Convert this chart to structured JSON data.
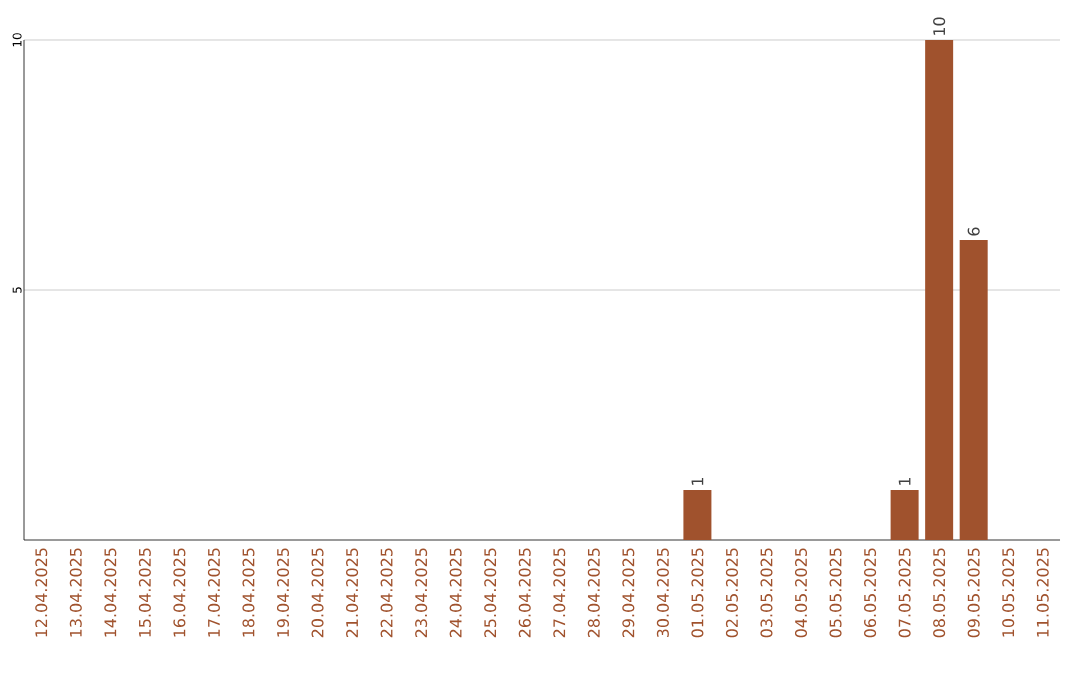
{
  "chart_data": {
    "type": "bar",
    "categories": [
      "12.04.2025",
      "13.04.2025",
      "14.04.2025",
      "15.04.2025",
      "16.04.2025",
      "17.04.2025",
      "18.04.2025",
      "19.04.2025",
      "20.04.2025",
      "21.04.2025",
      "22.04.2025",
      "23.04.2025",
      "24.04.2025",
      "25.04.2025",
      "26.04.2025",
      "27.04.2025",
      "28.04.2025",
      "29.04.2025",
      "30.04.2025",
      "01.05.2025",
      "02.05.2025",
      "03.05.2025",
      "04.05.2025",
      "05.05.2025",
      "06.05.2025",
      "07.05.2025",
      "08.05.2025",
      "09.05.2025",
      "10.05.2025",
      "11.05.2025"
    ],
    "values": [
      0,
      0,
      0,
      0,
      0,
      0,
      0,
      0,
      0,
      0,
      0,
      0,
      0,
      0,
      0,
      0,
      0,
      0,
      0,
      1,
      0,
      0,
      0,
      0,
      0,
      1,
      10,
      6,
      0,
      0
    ],
    "value_labels": [
      null,
      null,
      null,
      null,
      null,
      null,
      null,
      null,
      null,
      null,
      null,
      null,
      null,
      null,
      null,
      null,
      null,
      null,
      null,
      "1",
      null,
      null,
      null,
      null,
      null,
      "1",
      "10",
      "6",
      null,
      null
    ],
    "color": "#a0522d",
    "ylim": [
      0,
      10
    ],
    "yticks": [
      5,
      10
    ],
    "grid": "y"
  }
}
